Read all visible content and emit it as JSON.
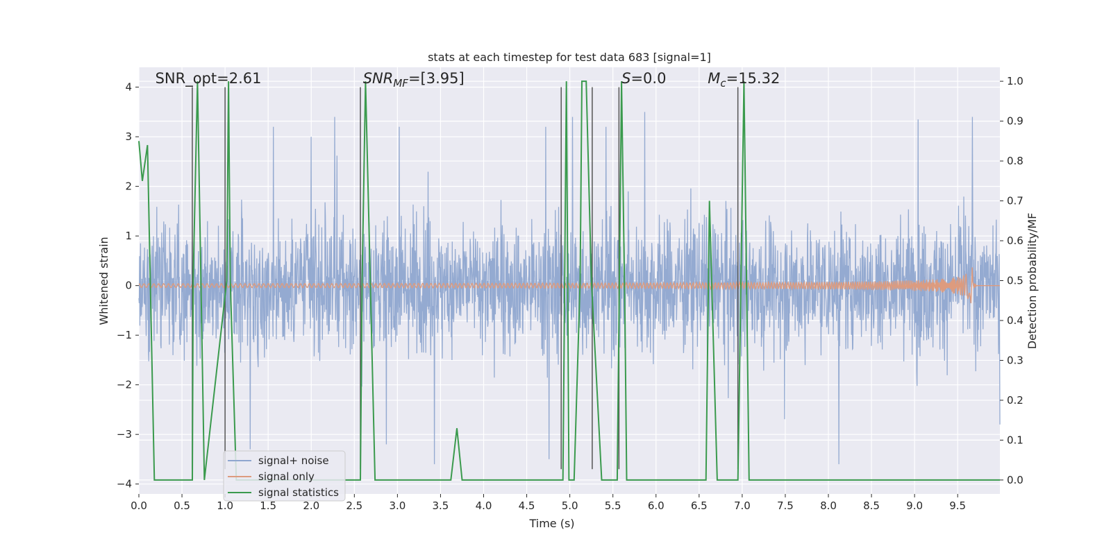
{
  "chart_data": {
    "type": "line",
    "title": "stats at each timestep for test data 683 [signal=1]",
    "xlabel": "Time (s)",
    "ylabel_left": "Whitened strain",
    "ylabel_right": "Detection probability/MF",
    "xlim": [
      0.0,
      9.99
    ],
    "ylim_left": [
      -4.2,
      4.4
    ],
    "ylim_right": [
      -0.035,
      1.035
    ],
    "xticks": [
      0.0,
      0.5,
      1.0,
      1.5,
      2.0,
      2.5,
      3.0,
      3.5,
      4.0,
      4.5,
      5.0,
      5.5,
      6.0,
      6.5,
      7.0,
      7.5,
      8.0,
      8.5,
      9.0,
      9.5
    ],
    "xtick_labels": [
      "0.0",
      "0.5",
      "1.0",
      "1.5",
      "2.0",
      "2.5",
      "3.0",
      "3.5",
      "4.0",
      "4.5",
      "5.0",
      "5.5",
      "6.0",
      "6.5",
      "7.0",
      "7.5",
      "8.0",
      "8.5",
      "9.0",
      "9.5"
    ],
    "yticks_left": [
      -4,
      -3,
      -2,
      -1,
      0,
      1,
      2,
      3,
      4
    ],
    "ytick_labels_left": [
      "−4",
      "−3",
      "−2",
      "−1",
      "0",
      "1",
      "2",
      "3",
      "4"
    ],
    "yticks_right": [
      0.0,
      0.1,
      0.2,
      0.3,
      0.4,
      0.5,
      0.6,
      0.7,
      0.8,
      0.9,
      1.0
    ],
    "ytick_labels_right": [
      "0.0",
      "0.1",
      "0.2",
      "0.3",
      "0.4",
      "0.5",
      "0.6",
      "0.7",
      "0.8",
      "0.9",
      "1.0"
    ],
    "grid": true,
    "legend_position": "lower-left",
    "annotations": [
      {
        "text": "SNR_opt=2.61",
        "x": 0.19,
        "y": 4.05
      },
      {
        "text": "SNR_MF=[3.95]",
        "x": 2.6,
        "y": 4.05
      },
      {
        "text": "S=0.0",
        "x": 5.6,
        "y": 4.05
      },
      {
        "text": "M_c=15.32",
        "x": 6.6,
        "y": 4.05
      }
    ],
    "vlines": [
      {
        "x": 0.62,
        "y": [
          -3.7,
          4.0
        ]
      },
      {
        "x": 1.0,
        "y": [
          -3.7,
          4.0
        ]
      },
      {
        "x": 2.57,
        "y": [
          -3.7,
          4.0
        ]
      },
      {
        "x": 4.9,
        "y": [
          -3.7,
          4.0
        ]
      },
      {
        "x": 5.26,
        "y": [
          -3.7,
          4.0
        ]
      },
      {
        "x": 5.57,
        "y": [
          -3.7,
          4.0
        ]
      },
      {
        "x": 6.95,
        "y": [
          -3.7,
          4.0
        ]
      }
    ],
    "series": [
      {
        "name": "signal+ noise",
        "axis": "left",
        "color": "#8fa6cf",
        "kind": "noise",
        "typical_range": [
          -1.6,
          1.7
        ],
        "peaks": [
          [
            1.56,
            3.2
          ],
          [
            2.0,
            3.0
          ],
          [
            2.27,
            3.4
          ],
          [
            3.02,
            3.2
          ],
          [
            4.72,
            3.2
          ],
          [
            5.03,
            3.4
          ],
          [
            5.42,
            3.2
          ],
          [
            5.87,
            3.5
          ],
          [
            9.04,
            3.35
          ],
          [
            9.67,
            3.4
          ],
          [
            8.12,
            -3.6
          ],
          [
            3.43,
            -3.6
          ],
          [
            4.76,
            -3.5
          ],
          [
            1.29,
            -3.3
          ],
          [
            2.87,
            -3.2
          ],
          [
            9.99,
            -2.8
          ]
        ]
      },
      {
        "name": "signal only",
        "axis": "left",
        "color": "#dd9b7e",
        "kind": "chirp",
        "t_merger": 9.67,
        "peak_amplitude": 0.45
      },
      {
        "name": "signal statistics",
        "axis": "right",
        "color": "#3a9a4d",
        "kind": "line",
        "x": [
          0.0,
          0.04,
          0.1,
          0.18,
          0.62,
          0.63,
          0.68,
          0.76,
          1.02,
          1.04,
          1.06,
          1.13,
          2.57,
          2.59,
          2.63,
          2.74,
          3.62,
          3.69,
          3.75,
          4.92,
          4.96,
          4.99,
          5.05,
          5.12,
          5.14,
          5.19,
          5.25,
          5.37,
          5.55,
          5.6,
          5.64,
          5.66,
          6.58,
          6.62,
          6.71,
          6.95,
          7.02,
          7.08,
          9.99
        ],
        "y": [
          0.85,
          0.75,
          0.84,
          0.0,
          0.0,
          0.5,
          1.0,
          0.0,
          0.5,
          1.0,
          0.5,
          0.0,
          0.0,
          0.5,
          1.0,
          0.0,
          0.0,
          0.13,
          0.0,
          0.0,
          1.0,
          0.0,
          0.0,
          0.5,
          1.0,
          1.0,
          0.5,
          0.0,
          0.0,
          1.0,
          0.4,
          0.0,
          0.0,
          0.7,
          0.0,
          0.0,
          1.0,
          0.0,
          0.0
        ]
      }
    ]
  }
}
